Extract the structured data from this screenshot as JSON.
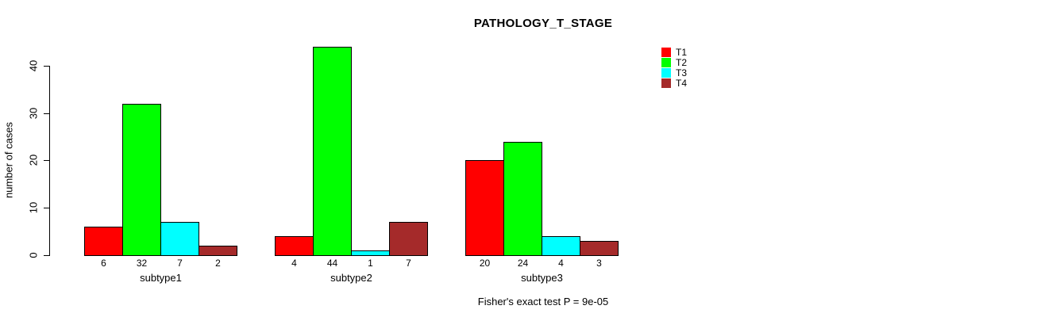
{
  "chart_data": {
    "type": "bar",
    "title": "PATHOLOGY_T_STAGE",
    "ylabel": "number of cases",
    "xlabel": "",
    "categories": [
      "subtype1",
      "subtype2",
      "subtype3"
    ],
    "series": [
      {
        "name": "T1",
        "color": "#ff0000",
        "values": [
          6,
          4,
          20
        ]
      },
      {
        "name": "T2",
        "color": "#00ff00",
        "values": [
          32,
          44,
          24
        ]
      },
      {
        "name": "T3",
        "color": "#00ffff",
        "values": [
          7,
          1,
          4
        ]
      },
      {
        "name": "T4",
        "color": "#a52a2a",
        "values": [
          2,
          7,
          3
        ]
      }
    ],
    "yticks": [
      0,
      10,
      20,
      30,
      40
    ],
    "ylim": [
      0,
      44
    ],
    "grid": false,
    "legend_position": "top-right",
    "bar_value_labels_shown": true,
    "annotation": "Fisher's exact test P = 9e-05"
  }
}
